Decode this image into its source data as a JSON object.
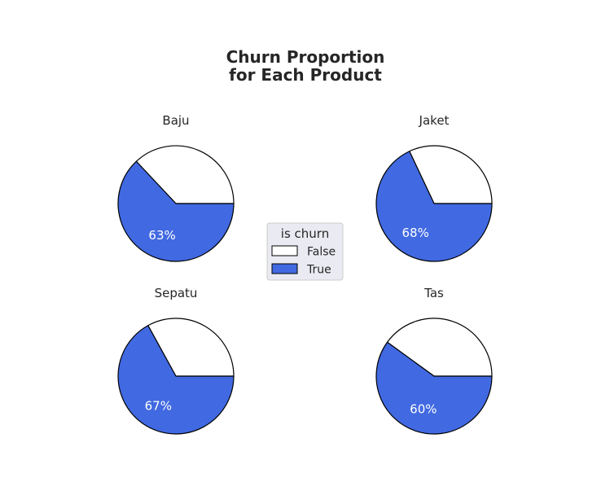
{
  "chart_data": {
    "type": "pie",
    "title_lines": [
      "Churn Proportion",
      "for Each Product"
    ],
    "legend": {
      "title": "is churn",
      "entries": [
        {
          "label": "False",
          "color": "#ffffff"
        },
        {
          "label": "True",
          "color": "#4169e1"
        }
      ]
    },
    "charts": [
      {
        "title": "Baju",
        "false_pct": 37,
        "true_pct": 63,
        "label": "63%"
      },
      {
        "title": "Jaket",
        "false_pct": 32,
        "true_pct": 68,
        "label": "68%"
      },
      {
        "title": "Sepatu",
        "false_pct": 33,
        "true_pct": 67,
        "label": "67%"
      },
      {
        "title": "Tas",
        "false_pct": 40,
        "true_pct": 60,
        "label": "60%"
      }
    ],
    "start_angle_deg": 0,
    "direction": "counterclockwise",
    "edge_color": "#000000"
  }
}
